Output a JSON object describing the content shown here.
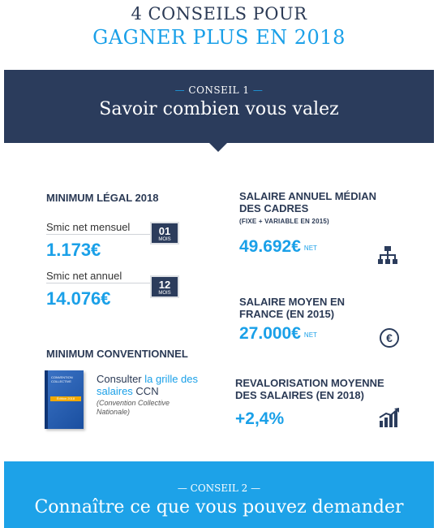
{
  "title": {
    "line1": "4 CONSEILS POUR",
    "line2": "GAGNER PLUS EN 2018"
  },
  "conseil1": {
    "kicker_dash_left": "—",
    "kicker": "CONSEIL 1",
    "kicker_dash_right": "—",
    "heading": "Savoir combien vous valez"
  },
  "min_legal": {
    "title": "MINIMUM LÉGAL 2018",
    "monthly_label": "Smic net mensuel",
    "monthly_value": "1.173€",
    "monthly_badge_num": "01",
    "monthly_badge_unit": "MOIS",
    "annual_label": "Smic net annuel",
    "annual_value": "14.076€",
    "annual_badge_num": "12",
    "annual_badge_unit": "MOIS"
  },
  "min_conv": {
    "title": "MINIMUM CONVENTIONNEL",
    "book_title": "CONVENTION COLLECTIVE",
    "book_strip": "Édition 2018",
    "text_before": "Consulter",
    "link": "la grille des salaires",
    "text_after": "CCN",
    "italic": "(Convention Collective Nationale)"
  },
  "median": {
    "title": "SALAIRE ANNUEL MÉDIAN DES CADRES",
    "subtitle": "(FIXE + VARIABLE EN 2015)",
    "value": "49.692€",
    "unit": "NET",
    "icon": "org-chart-icon"
  },
  "moyen": {
    "title": "SALAIRE MOYEN EN FRANCE (EN 2015)",
    "value": "27.000€",
    "unit": "NET",
    "icon": "euro-coin-icon",
    "icon_glyph": "€"
  },
  "revalo": {
    "title": "REVALORISATION MOYENNE DES SALAIRES (EN 2018)",
    "value": "+2,4%",
    "icon": "growth-chart-icon"
  },
  "conseil2": {
    "kicker_dash_left": "—",
    "kicker": "CONSEIL 2",
    "kicker_dash_right": "—",
    "heading": "Connaître ce que vous pouvez demander"
  },
  "colors": {
    "navy": "#2b3c5c",
    "accent": "#1aa0e8",
    "gray_bg": "#e3e4e6"
  }
}
